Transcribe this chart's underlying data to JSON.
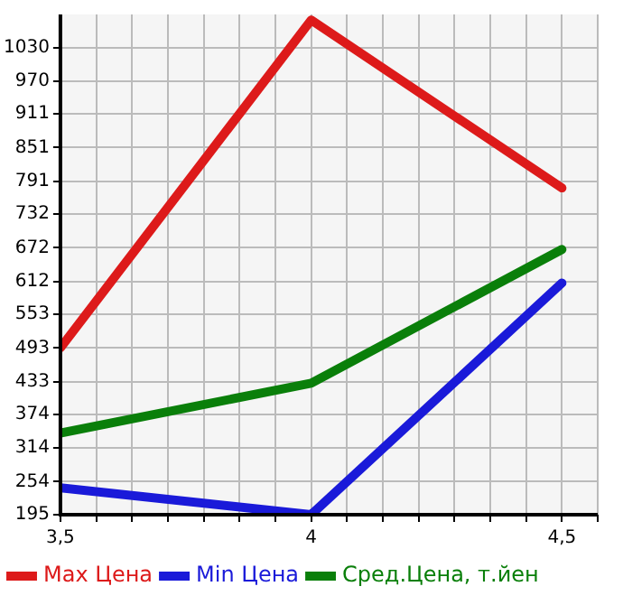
{
  "chart_data": {
    "type": "line",
    "x": [
      3.5,
      4,
      4.5
    ],
    "series": [
      {
        "name": "Max Цена",
        "color": "#dd1a1a",
        "values": [
          493,
          1079,
          779
        ]
      },
      {
        "name": "Min Цена",
        "color": "#1a1ad9",
        "values": [
          243,
          195,
          609
        ]
      },
      {
        "name": "Сред.Цена, т.йен",
        "color": "#0a7f0a",
        "values": [
          341,
          430,
          669
        ]
      }
    ],
    "xlim": [
      3.5,
      4.5714
    ],
    "xticks": [
      {
        "value": 3.5,
        "label": "3,5"
      },
      {
        "value": 3.5714,
        "label": null
      },
      {
        "value": 3.6429,
        "label": null
      },
      {
        "value": 3.7143,
        "label": null
      },
      {
        "value": 3.7857,
        "label": null
      },
      {
        "value": 3.8571,
        "label": null
      },
      {
        "value": 3.9286,
        "label": null
      },
      {
        "value": 4,
        "label": "4"
      },
      {
        "value": 4.0714,
        "label": null
      },
      {
        "value": 4.1429,
        "label": null
      },
      {
        "value": 4.2143,
        "label": null
      },
      {
        "value": 4.2857,
        "label": null
      },
      {
        "value": 4.3571,
        "label": null
      },
      {
        "value": 4.4286,
        "label": null
      },
      {
        "value": 4.5,
        "label": "4,5"
      },
      {
        "value": 4.5714,
        "label": null
      }
    ],
    "ylim": [
      195,
      1089
    ],
    "yticks": [
      195,
      254,
      314,
      374,
      433,
      493,
      553,
      612,
      672,
      732,
      791,
      851,
      911,
      970,
      1030
    ],
    "grid": true,
    "legend": "bottom",
    "marker": "none",
    "line_style": "solid"
  }
}
